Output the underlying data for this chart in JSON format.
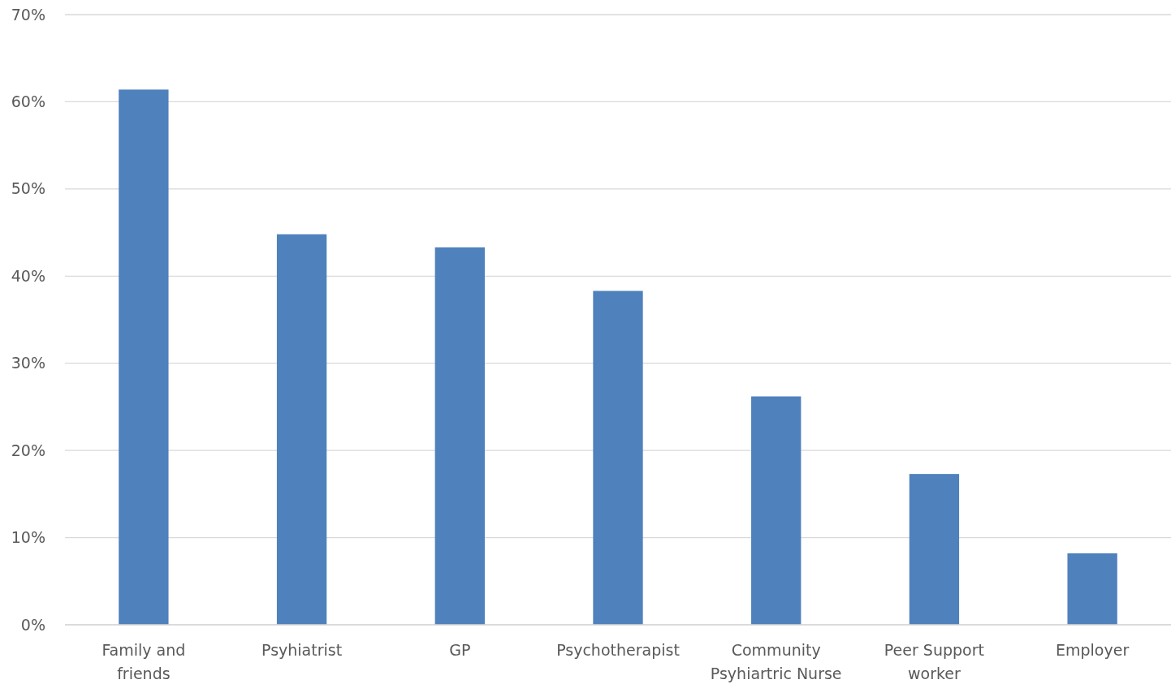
{
  "chart_data": {
    "type": "bar",
    "categories": [
      "Family and friends",
      "Psyhiatrist",
      "GP",
      "Psychotherapist",
      "Community Psyhiartric Nurse",
      "Peer Support worker",
      "Employer"
    ],
    "values": [
      61.4,
      44.8,
      43.3,
      38.3,
      26.2,
      17.3,
      8.2
    ],
    "color": "#4f81bd",
    "ylim": [
      0,
      70
    ],
    "yticks": [
      {
        "value": 0,
        "label": "0%"
      },
      {
        "value": 10,
        "label": "10%"
      },
      {
        "value": 20,
        "label": "20%"
      },
      {
        "value": 30,
        "label": "30%"
      },
      {
        "value": 40,
        "label": "40%"
      },
      {
        "value": 50,
        "label": "50%"
      },
      {
        "value": 60,
        "label": "60%"
      },
      {
        "value": 70,
        "label": "70%"
      }
    ],
    "grid": "y"
  }
}
